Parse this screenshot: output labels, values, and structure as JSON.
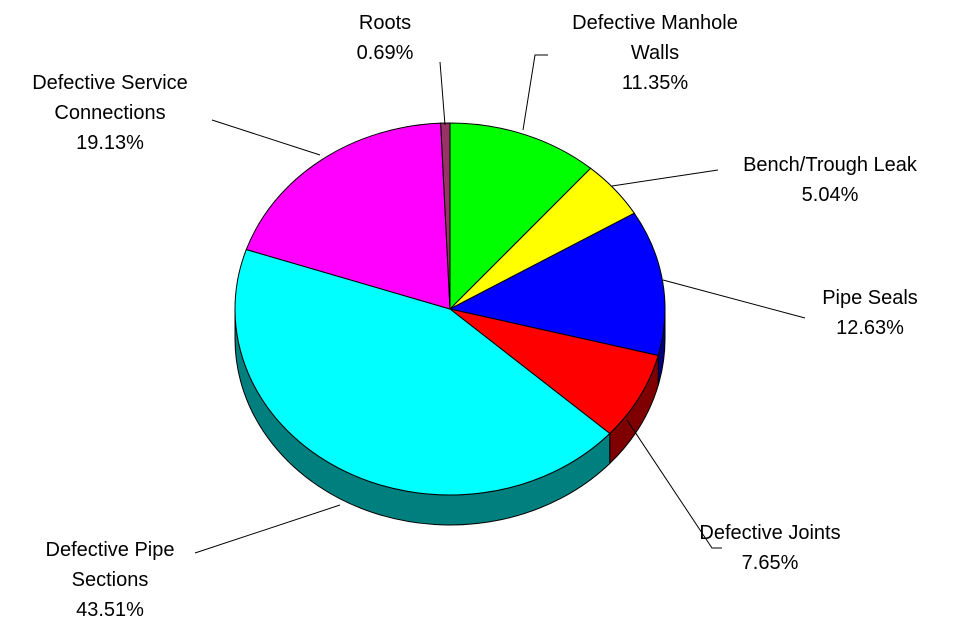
{
  "chart_data": {
    "type": "pie",
    "categories": [
      "Defective Manhole Walls",
      "Bench/Trough Leak",
      "Pipe Seals",
      "Defective Joints",
      "Defective Pipe Sections",
      "Defective Service Connections",
      "Roots"
    ],
    "values": [
      11.35,
      5.04,
      12.63,
      7.65,
      43.51,
      19.13,
      0.69
    ],
    "value_labels": [
      "11.35%",
      "5.04%",
      "12.63%",
      "7.65%",
      "43.51%",
      "19.13%",
      "0.69%"
    ],
    "colors": [
      "#00ff00",
      "#ffff00",
      "#0000ff",
      "#ff0000",
      "#00ffff",
      "#ff00ff",
      "#993366"
    ]
  }
}
